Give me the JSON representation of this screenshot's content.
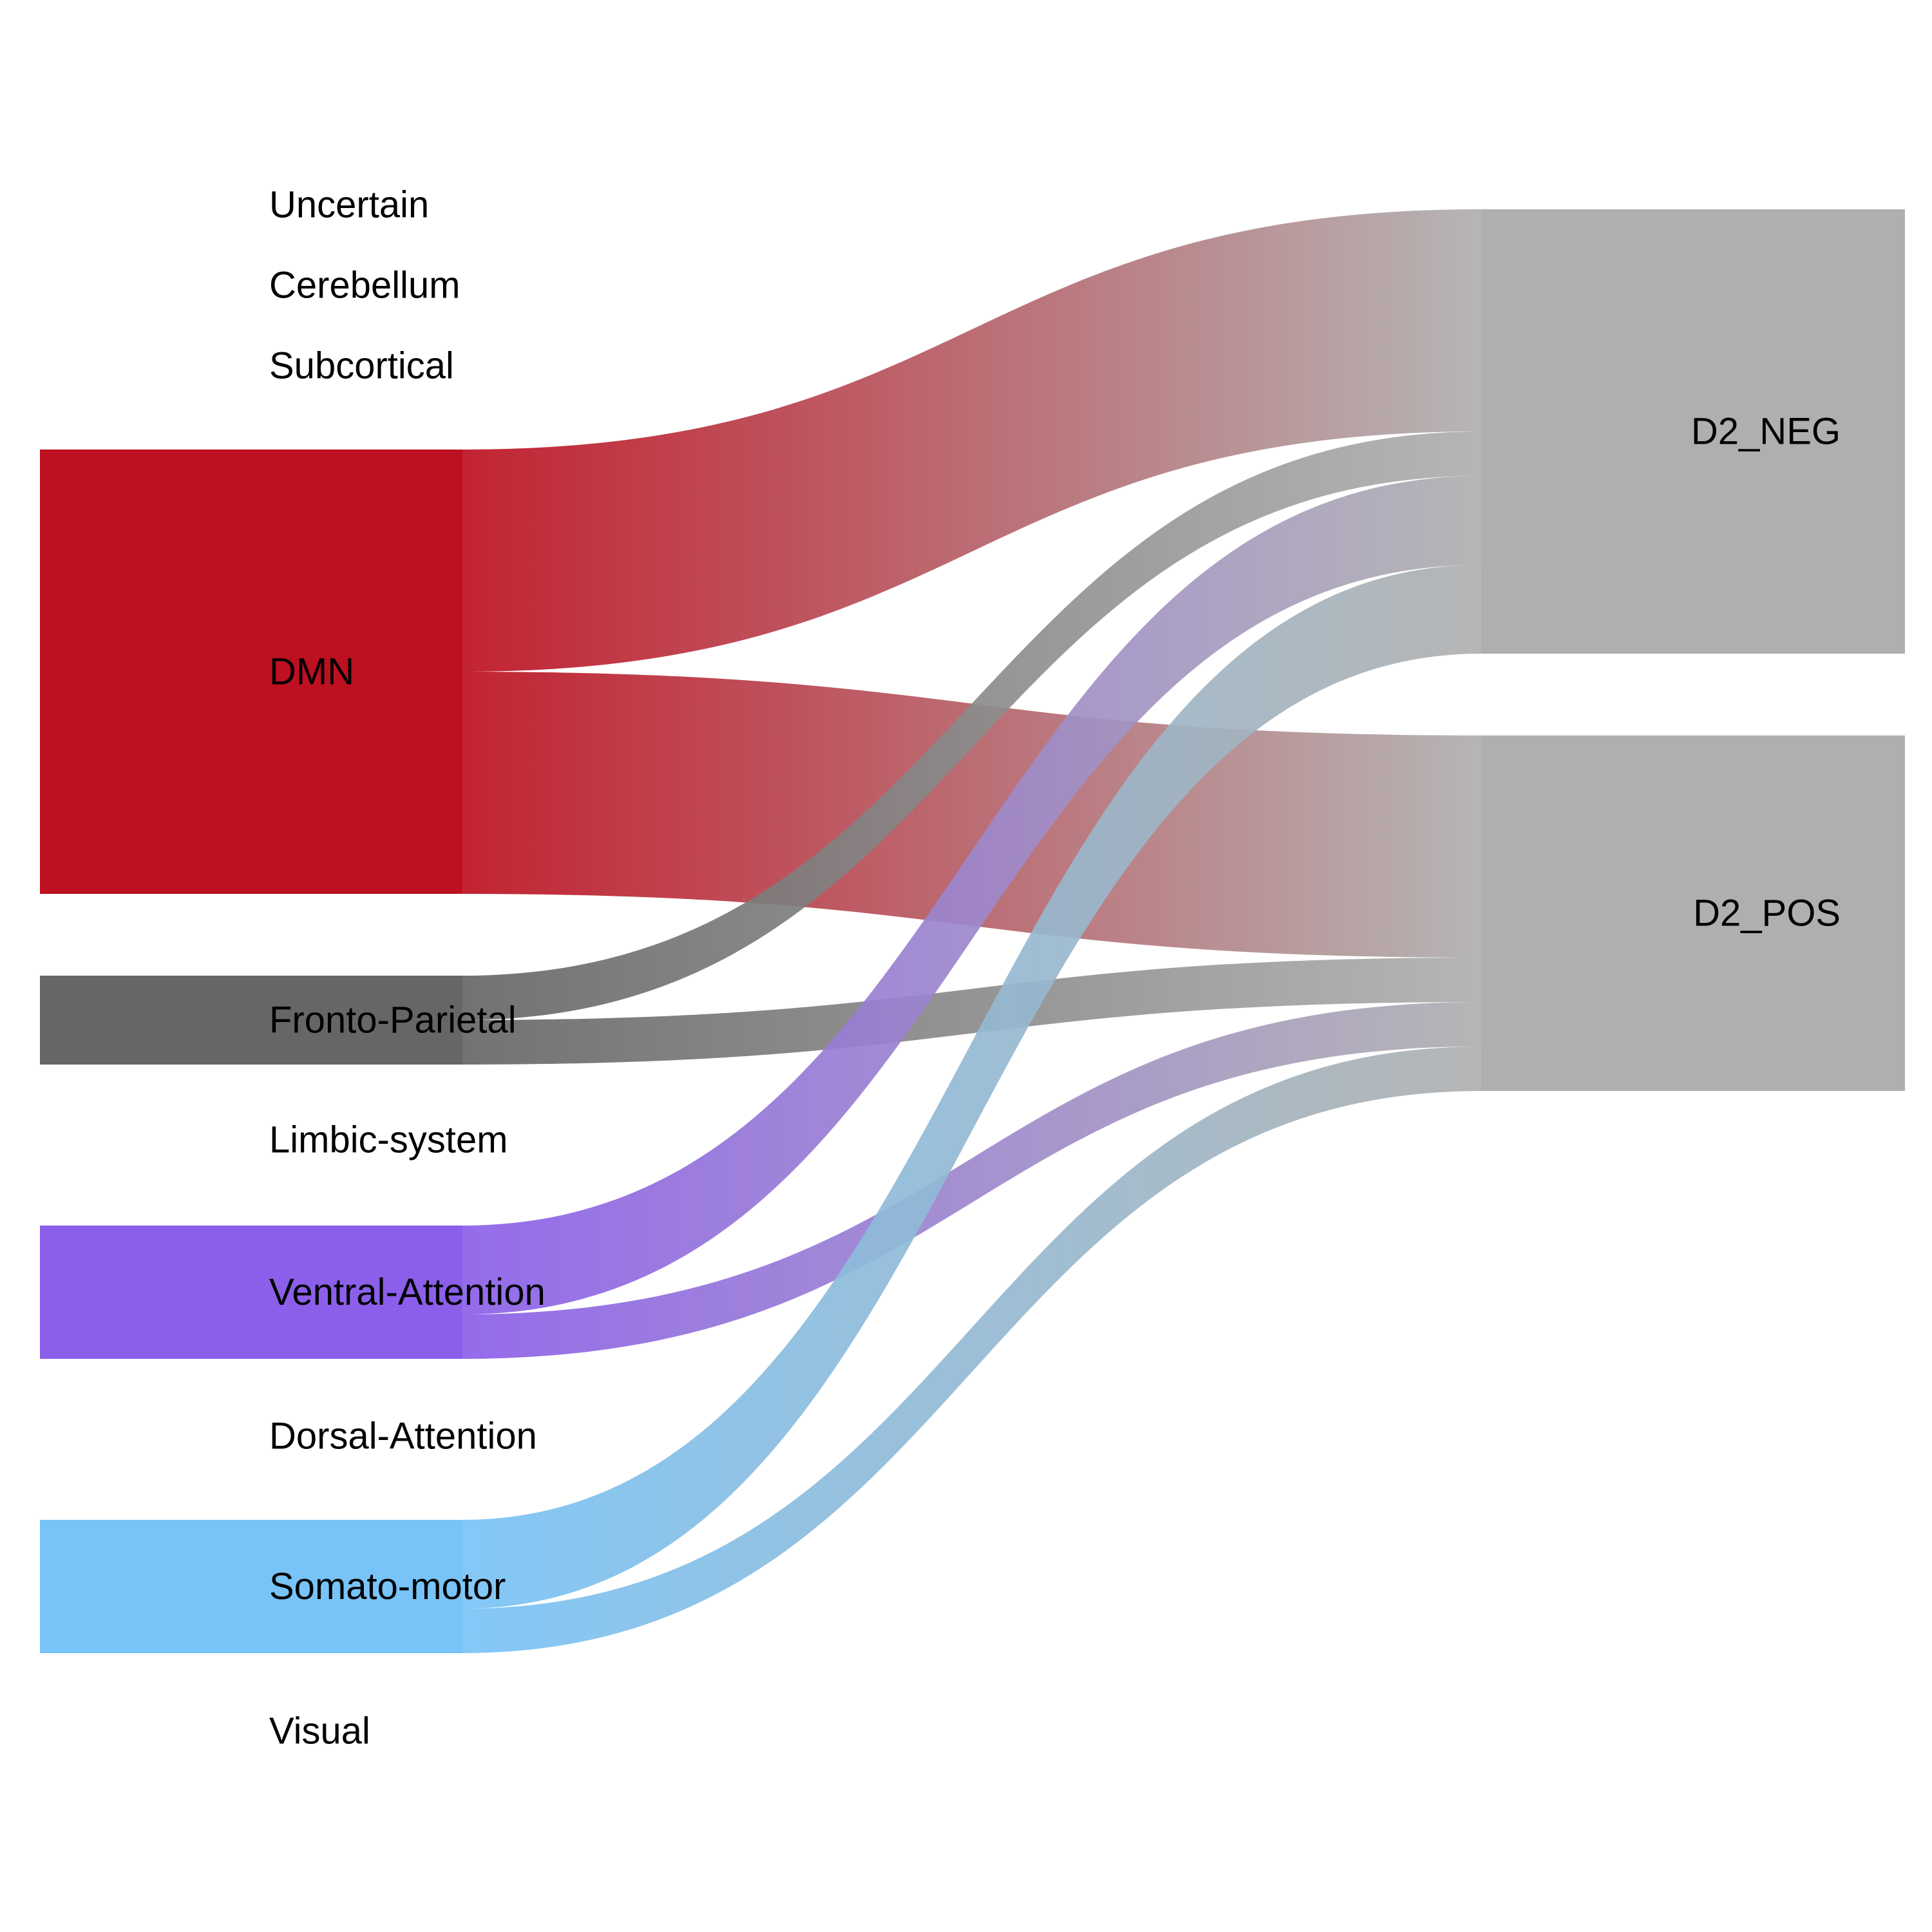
{
  "chart_data": {
    "type": "sankey",
    "source_nodes": [
      {
        "id": "Uncertain",
        "label": "Uncertain",
        "color": null,
        "value": 0
      },
      {
        "id": "Cerebellum",
        "label": "Cerebellum",
        "color": null,
        "value": 0
      },
      {
        "id": "Subcortical",
        "label": "Subcortical",
        "color": null,
        "value": 0
      },
      {
        "id": "DMN",
        "label": "DMN",
        "color": "#bd1020",
        "value": 100
      },
      {
        "id": "Fronto-Parietal",
        "label": "Fronto-Parietal",
        "color": "#666666",
        "value": 20
      },
      {
        "id": "Limbic-system",
        "label": "Limbic-system",
        "color": null,
        "value": 0
      },
      {
        "id": "Ventral-Attention",
        "label": "Ventral-Attention",
        "color": "#8b5fe9",
        "value": 30
      },
      {
        "id": "Dorsal-Attention",
        "label": "Dorsal-Attention",
        "color": null,
        "value": 0
      },
      {
        "id": "Somato-motor",
        "label": "Somato-motor",
        "color": "#78c3f7",
        "value": 30
      },
      {
        "id": "Visual",
        "label": "Visual",
        "color": null,
        "value": 0
      }
    ],
    "target_nodes": [
      {
        "id": "D2_NEG",
        "label": "D2_NEG",
        "color": "#afafaf",
        "value": 100
      },
      {
        "id": "D2_POS",
        "label": "D2_POS",
        "color": "#afafaf",
        "value": 80
      }
    ],
    "links": [
      {
        "source": "DMN",
        "target": "D2_NEG",
        "value": 50
      },
      {
        "source": "DMN",
        "target": "D2_POS",
        "value": 50
      },
      {
        "source": "Fronto-Parietal",
        "target": "D2_NEG",
        "value": 10
      },
      {
        "source": "Fronto-Parietal",
        "target": "D2_POS",
        "value": 10
      },
      {
        "source": "Ventral-Attention",
        "target": "D2_NEG",
        "value": 20
      },
      {
        "source": "Ventral-Attention",
        "target": "D2_POS",
        "value": 10
      },
      {
        "source": "Somato-motor",
        "target": "D2_NEG",
        "value": 20
      },
      {
        "source": "Somato-motor",
        "target": "D2_POS",
        "value": 10
      }
    ]
  }
}
